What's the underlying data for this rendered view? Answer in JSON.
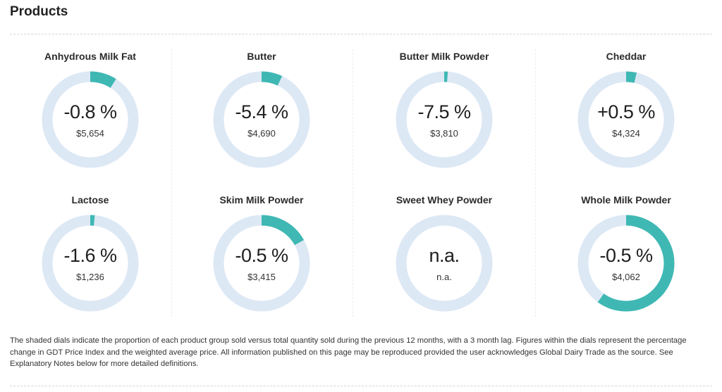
{
  "page": {
    "title": "Products"
  },
  "colors": {
    "dial_track": "#dde8f5",
    "dial_fill": "#3fb8b4"
  },
  "products": [
    {
      "name": "Anhydrous Milk Fat",
      "change": "-0.8 %",
      "price": "$5,654",
      "share": 0.09
    },
    {
      "name": "Butter",
      "change": "-5.4 %",
      "price": "$4,690",
      "share": 0.07
    },
    {
      "name": "Butter Milk Powder",
      "change": "-7.5 %",
      "price": "$3,810",
      "share": 0.012
    },
    {
      "name": "Cheddar",
      "change": "+0.5 %",
      "price": "$4,324",
      "share": 0.035
    },
    {
      "name": "Lactose",
      "change": "-1.6 %",
      "price": "$1,236",
      "share": 0.015
    },
    {
      "name": "Skim Milk Powder",
      "change": "-0.5 %",
      "price": "$3,415",
      "share": 0.17
    },
    {
      "name": "Sweet Whey Powder",
      "change": "n.a.",
      "price": "n.a.",
      "share": 0
    },
    {
      "name": "Whole Milk Powder",
      "change": "-0.5 %",
      "price": "$4,062",
      "share": 0.6
    }
  ],
  "footnote": "The shaded dials indicate the proportion of each product group sold versus total quantity sold during the previous 12 months, with a 3 month lag. Figures within the dials represent the percentage change in GDT Price Index and the weighted average price. All information published on this page may be reproduced provided the user acknowledges Global Dairy Trade as the source. See Explanatory Notes below for more detailed definitions."
}
